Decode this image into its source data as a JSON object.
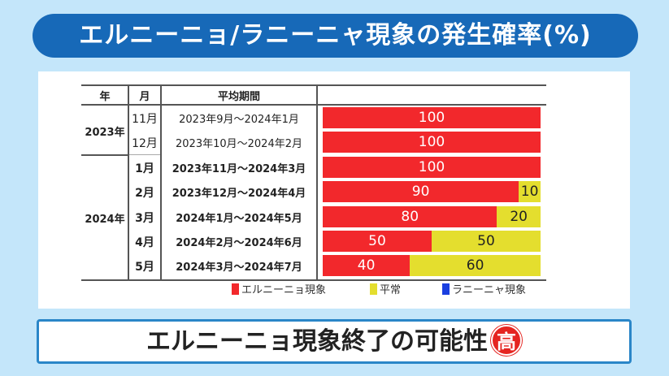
{
  "title": "エルニーニョ/ラニーニャ現象の発生確率(%)",
  "banner": {
    "text": "エルニーニョ現象終了の可能性",
    "badge": "高"
  },
  "colors": {
    "el_nino": "#f2282c",
    "normal": "#e4de2e",
    "la_nina": "#1a3fe0"
  },
  "chart_data": {
    "type": "bar",
    "stacked": true,
    "orientation": "horizontal",
    "headers": {
      "year": "年",
      "month": "月",
      "period": "平均期間"
    },
    "years": [
      {
        "label": "2023年",
        "rows": 2
      },
      {
        "label": "2024年",
        "rows": 5
      }
    ],
    "months": [
      "11月",
      "12月",
      "1月",
      "2月",
      "3月",
      "4月",
      "5月"
    ],
    "categories": [
      "2023年9月～2024年1月",
      "2023年10月～2024年2月",
      "2023年11月～2024年3月",
      "2023年12月～2024年4月",
      "2024年1月～2024年5月",
      "2024年2月～2024年6月",
      "2024年3月～2024年7月"
    ],
    "series": [
      {
        "name": "エルニーニョ現象",
        "values": [
          100,
          100,
          100,
          90,
          80,
          50,
          40
        ]
      },
      {
        "name": "平常",
        "values": [
          0,
          0,
          0,
          10,
          20,
          50,
          60
        ]
      },
      {
        "name": "ラニーニャ現象",
        "values": [
          0,
          0,
          0,
          0,
          0,
          0,
          0
        ]
      }
    ],
    "xlim": [
      0,
      100
    ],
    "legend_position": "bottom"
  }
}
